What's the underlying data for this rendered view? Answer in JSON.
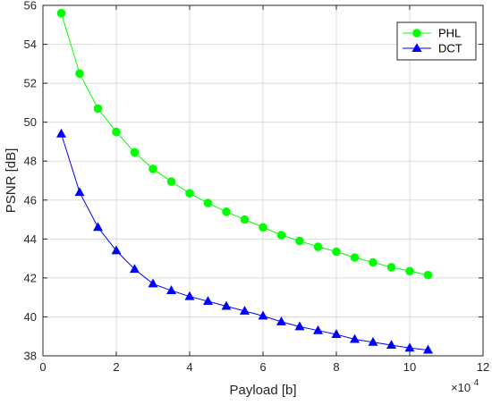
{
  "chart_data": {
    "type": "line",
    "title": "",
    "xlabel": "Payload [b]",
    "ylabel": "PSNR [dB]",
    "x_multiplier_label": "×10",
    "x_multiplier_exp": "4",
    "xlim": [
      0,
      12
    ],
    "ylim": [
      38,
      56
    ],
    "xticks": [
      0,
      2,
      4,
      6,
      8,
      10,
      12
    ],
    "yticks": [
      38,
      40,
      42,
      44,
      46,
      48,
      50,
      52,
      54,
      56
    ],
    "grid": true,
    "legend_position": "top-right",
    "x": [
      0.5,
      1,
      1.5,
      2,
      2.5,
      3,
      3.5,
      4,
      4.5,
      5,
      5.5,
      6,
      6.5,
      7,
      7.5,
      8,
      8.5,
      9,
      9.5,
      10,
      10.5
    ],
    "series": [
      {
        "name": "PHL",
        "color": "#00ff00",
        "marker": "circle",
        "values": [
          55.6,
          52.5,
          50.7,
          49.5,
          48.45,
          47.6,
          46.95,
          46.35,
          45.85,
          45.4,
          45.0,
          44.6,
          44.2,
          43.9,
          43.6,
          43.35,
          43.05,
          42.8,
          42.55,
          42.35,
          42.15
        ]
      },
      {
        "name": "DCT",
        "color": "#0000ff",
        "marker": "triangle",
        "values": [
          49.4,
          46.4,
          44.6,
          43.4,
          42.45,
          41.7,
          41.35,
          41.05,
          40.8,
          40.55,
          40.3,
          40.05,
          39.75,
          39.5,
          39.3,
          39.1,
          38.85,
          38.7,
          38.55,
          38.4,
          38.3
        ]
      }
    ]
  }
}
